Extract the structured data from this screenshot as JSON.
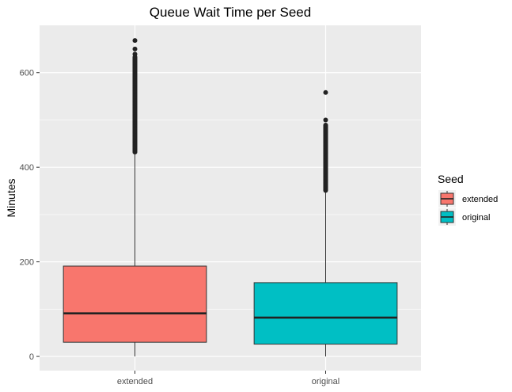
{
  "chart_data": {
    "type": "boxplot",
    "title": "Queue Wait Time per Seed",
    "xlabel": "",
    "ylabel": "Minutes",
    "ylim": [
      -30,
      700
    ],
    "y_ticks": [
      0,
      200,
      400,
      600
    ],
    "categories": [
      "extended",
      "original"
    ],
    "legend": {
      "title": "Seed",
      "position": "right",
      "entries": [
        "extended",
        "original"
      ]
    },
    "grid": true,
    "series": [
      {
        "name": "extended",
        "color": "#F8766D",
        "whisker_low": 0,
        "q1": 30,
        "median": 91,
        "q3": 191,
        "whisker_high": 432,
        "outlier_range": [
          432,
          632
        ],
        "outliers_sparse": [
          633,
          639,
          650,
          668
        ]
      },
      {
        "name": "original",
        "color": "#00BFC4",
        "whisker_low": 0,
        "q1": 26,
        "median": 82,
        "q3": 156,
        "whisker_high": 351,
        "outlier_range": [
          351,
          490
        ],
        "outliers_sparse": [
          500,
          558
        ]
      }
    ]
  }
}
